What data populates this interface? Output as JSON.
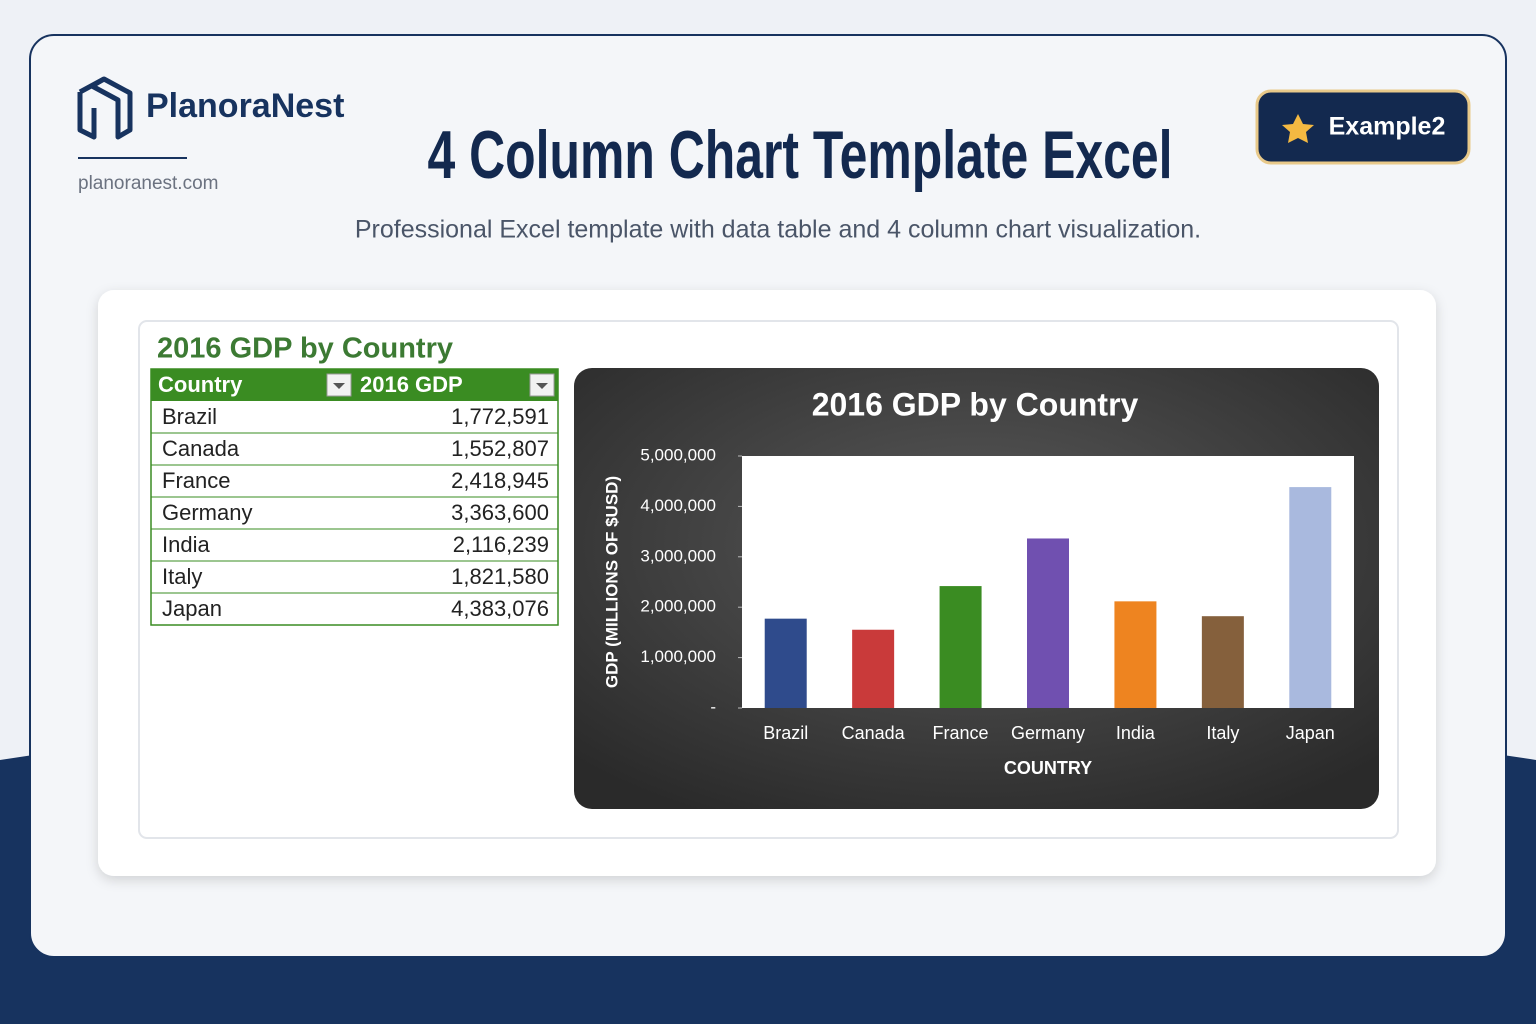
{
  "header": {
    "brand": "PlanoraNest",
    "site": "planoranest.com",
    "title": "4 Column Chart Template Excel",
    "subtitle": "Professional Excel template with data table and 4 column chart visualization.",
    "badge": "Example2"
  },
  "table": {
    "title": "2016 GDP by Country",
    "columns": [
      "Country",
      "2016 GDP"
    ],
    "rows": [
      [
        "Brazil",
        "1,772,591"
      ],
      [
        "Canada",
        "1,552,807"
      ],
      [
        "France",
        "2,418,945"
      ],
      [
        "Germany",
        "3,363,600"
      ],
      [
        "India",
        "2,116,239"
      ],
      [
        "Italy",
        "1,821,580"
      ],
      [
        "Japan",
        "4,383,076"
      ]
    ]
  },
  "chart_data": {
    "type": "bar",
    "title": "2016 GDP by Country",
    "x_label": "COUNTRY",
    "y_label": "GDP (MILLIONS OF $USD)",
    "categories": [
      "Brazil",
      "Canada",
      "France",
      "Germany",
      "India",
      "Italy",
      "Japan"
    ],
    "values": [
      1772591,
      1552807,
      2418945,
      3363600,
      2116239,
      1821580,
      4383076
    ],
    "colors": [
      "#2f4b8c",
      "#c93a3a",
      "#3a8c22",
      "#7050b0",
      "#ee8420",
      "#85603c",
      "#a9b9de"
    ],
    "ylim": [
      0,
      5000000
    ],
    "yticks": [
      {
        "value": 0,
        "label": "-"
      },
      {
        "value": 1000000,
        "label": "1,000,000"
      },
      {
        "value": 2000000,
        "label": "2,000,000"
      },
      {
        "value": 3000000,
        "label": "3,000,000"
      },
      {
        "value": 4000000,
        "label": "4,000,000"
      },
      {
        "value": 5000000,
        "label": "5,000,000"
      }
    ],
    "grid": false
  }
}
